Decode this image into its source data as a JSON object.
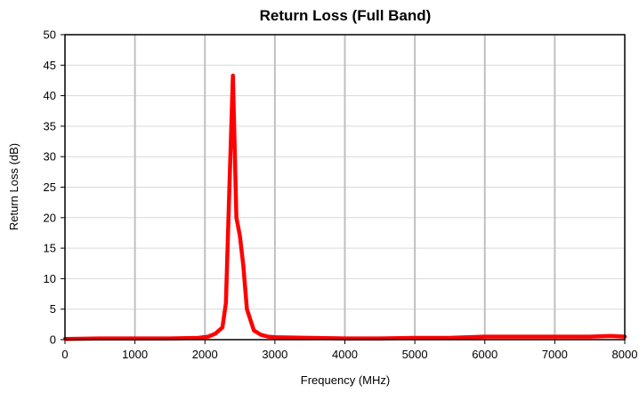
{
  "chart_data": {
    "type": "line",
    "title": "Return Loss (Full Band)",
    "xlabel": "Frequency (MHz)",
    "ylabel": "Return Loss (dB)",
    "xlim": [
      0,
      8000
    ],
    "ylim": [
      0,
      50
    ],
    "xticks": [
      0,
      1000,
      2000,
      3000,
      4000,
      5000,
      6000,
      7000,
      8000
    ],
    "yticks": [
      0,
      5,
      10,
      15,
      20,
      25,
      30,
      35,
      40,
      45,
      50
    ],
    "grid": {
      "vertical": true,
      "horizontal": true
    },
    "legend": "none",
    "colors": {
      "series": "#ff0000",
      "grid_vertical": "#c0c0c0",
      "grid_horizontal": "#d9d9d9",
      "frame": "#000000"
    },
    "series": [
      {
        "x": [
          0,
          500,
          1000,
          1500,
          1900,
          2050,
          2150,
          2250,
          2300,
          2350,
          2400,
          2450,
          2500,
          2550,
          2600,
          2700,
          2800,
          2900,
          3000,
          3500,
          4000,
          4500,
          5000,
          5500,
          6000,
          6500,
          7000,
          7500,
          7800,
          8000
        ],
        "y": [
          0.1,
          0.2,
          0.2,
          0.2,
          0.3,
          0.5,
          1.0,
          2.0,
          6.0,
          25.0,
          43.3,
          20.0,
          17.0,
          12.0,
          5.0,
          1.5,
          0.8,
          0.5,
          0.4,
          0.3,
          0.2,
          0.2,
          0.3,
          0.3,
          0.5,
          0.5,
          0.5,
          0.5,
          0.6,
          0.5
        ]
      }
    ]
  }
}
